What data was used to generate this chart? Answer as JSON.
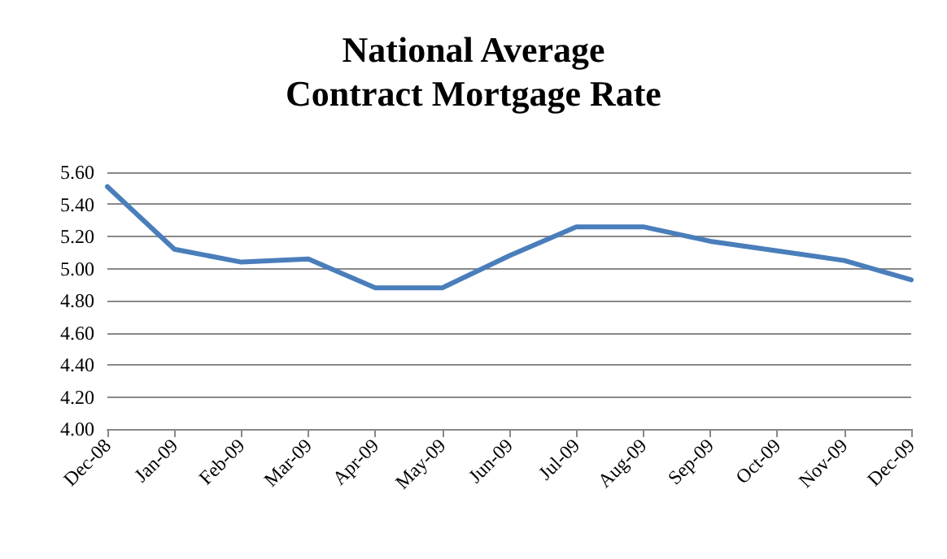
{
  "chart_data": {
    "type": "line",
    "title": "National Average\nContract Mortgage Rate",
    "categories": [
      "Dec-08",
      "Jan-09",
      "Feb-09",
      "Mar-09",
      "Apr-09",
      "May-09",
      "Jun-09",
      "Jul-09",
      "Aug-09",
      "Sep-09",
      "Oct-09",
      "Nov-09",
      "Dec-09"
    ],
    "series": [
      {
        "color": "#4a7ebb",
        "values": [
          5.51,
          5.12,
          5.04,
          5.06,
          4.88,
          4.88,
          5.08,
          5.26,
          5.26,
          5.17,
          5.11,
          5.05,
          4.93
        ]
      }
    ],
    "ylim": [
      4.0,
      5.6
    ],
    "yticks": [
      {
        "value": 4.0,
        "label": "4.00"
      },
      {
        "value": 4.2,
        "label": "4.20"
      },
      {
        "value": 4.4,
        "label": "4.40"
      },
      {
        "value": 4.6,
        "label": "4.60"
      },
      {
        "value": 4.8,
        "label": "4.80"
      },
      {
        "value": 5.0,
        "label": "5.00"
      },
      {
        "value": 5.2,
        "label": "5.20"
      },
      {
        "value": 5.4,
        "label": "5.40"
      },
      {
        "value": 5.6,
        "label": "5.60"
      }
    ],
    "grid": "y",
    "marker": "none",
    "line_style": "solid"
  }
}
